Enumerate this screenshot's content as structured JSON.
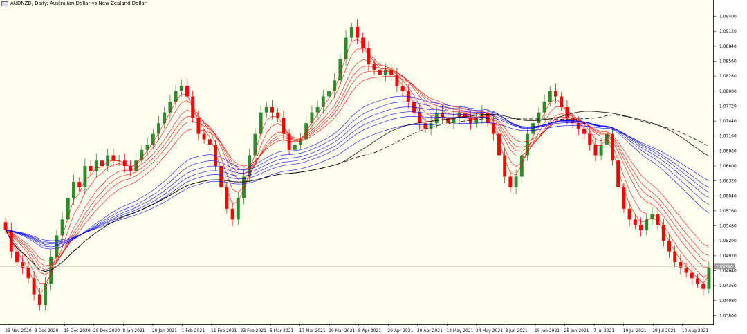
{
  "header": {
    "title": "AUDNZD, Daily:  Australian Dollar vs New Zealand Dollar",
    "icon": "chart-symbol-icon"
  },
  "colors": {
    "background": "#fffff0",
    "bull": "#2e8b2e",
    "bear": "#ff0000",
    "fast_ma": "#ff0000",
    "slow_ma": "#0000ff",
    "long_ma_solid": "#000000",
    "long_ma_dashed": "#000000"
  },
  "chart_data": {
    "type": "candlestick",
    "ylim": [
      1.0365,
      1.0955
    ],
    "y_ticks": [
      "1.09400",
      "1.09120",
      "1.08840",
      "1.08560",
      "1.08280",
      "1.08000",
      "1.07720",
      "1.07440",
      "1.07160",
      "1.06880",
      "1.06600",
      "1.06320",
      "1.06040",
      "1.05760",
      "1.05480",
      "1.05200",
      "1.04920",
      "1.04640",
      "1.04360",
      "1.04080",
      "1.03800"
    ],
    "x_ticks": [
      "23 Nov 2020",
      "3 Dec 2020",
      "15 Dec 2020",
      "28 Dec 2020",
      "8 Jan 2021",
      "20 Jan 2021",
      "1 Feb 2021",
      "11 Feb 2021",
      "23 Feb 2021",
      "5 Mar 2021",
      "17 Mar 2021",
      "29 Mar 2021",
      "8 Apr 2021",
      "20 Apr 2021",
      "30 Apr 2021",
      "12 May 2021",
      "24 May 2021",
      "3 Jun 2021",
      "15 Jun 2021",
      "25 Jun 2021",
      "7 Jul 2021",
      "19 Jul 2021",
      "29 Jul 2021",
      "10 Aug 2021"
    ],
    "current_price": "1.04720",
    "closes": [
      1.054,
      1.05,
      1.048,
      1.047,
      1.045,
      1.042,
      1.04,
      1.044,
      1.049,
      1.053,
      1.056,
      1.06,
      1.063,
      1.062,
      1.066,
      1.065,
      1.067,
      1.066,
      1.068,
      1.067,
      1.067,
      1.066,
      1.065,
      1.067,
      1.069,
      1.07,
      1.072,
      1.074,
      1.076,
      1.078,
      1.08,
      1.081,
      1.079,
      1.075,
      1.072,
      1.071,
      1.07,
      1.066,
      1.062,
      1.058,
      1.056,
      1.06,
      1.064,
      1.068,
      1.072,
      1.076,
      1.077,
      1.076,
      1.075,
      1.072,
      1.069,
      1.07,
      1.071,
      1.074,
      1.076,
      1.077,
      1.079,
      1.08,
      1.082,
      1.086,
      1.09,
      1.092,
      1.09,
      1.088,
      1.085,
      1.084,
      1.083,
      1.084,
      1.083,
      1.081,
      1.08,
      1.078,
      1.076,
      1.074,
      1.073,
      1.074,
      1.076,
      1.075,
      1.074,
      1.075,
      1.076,
      1.075,
      1.074,
      1.075,
      1.076,
      1.074,
      1.072,
      1.068,
      1.064,
      1.062,
      1.064,
      1.068,
      1.072,
      1.074,
      1.076,
      1.078,
      1.08,
      1.079,
      1.077,
      1.075,
      1.074,
      1.073,
      1.072,
      1.07,
      1.068,
      1.07,
      1.072,
      1.067,
      1.062,
      1.058,
      1.056,
      1.055,
      1.054,
      1.056,
      1.057,
      1.055,
      1.052,
      1.05,
      1.048,
      1.047,
      1.046,
      1.045,
      1.044,
      1.043,
      1.047
    ]
  }
}
